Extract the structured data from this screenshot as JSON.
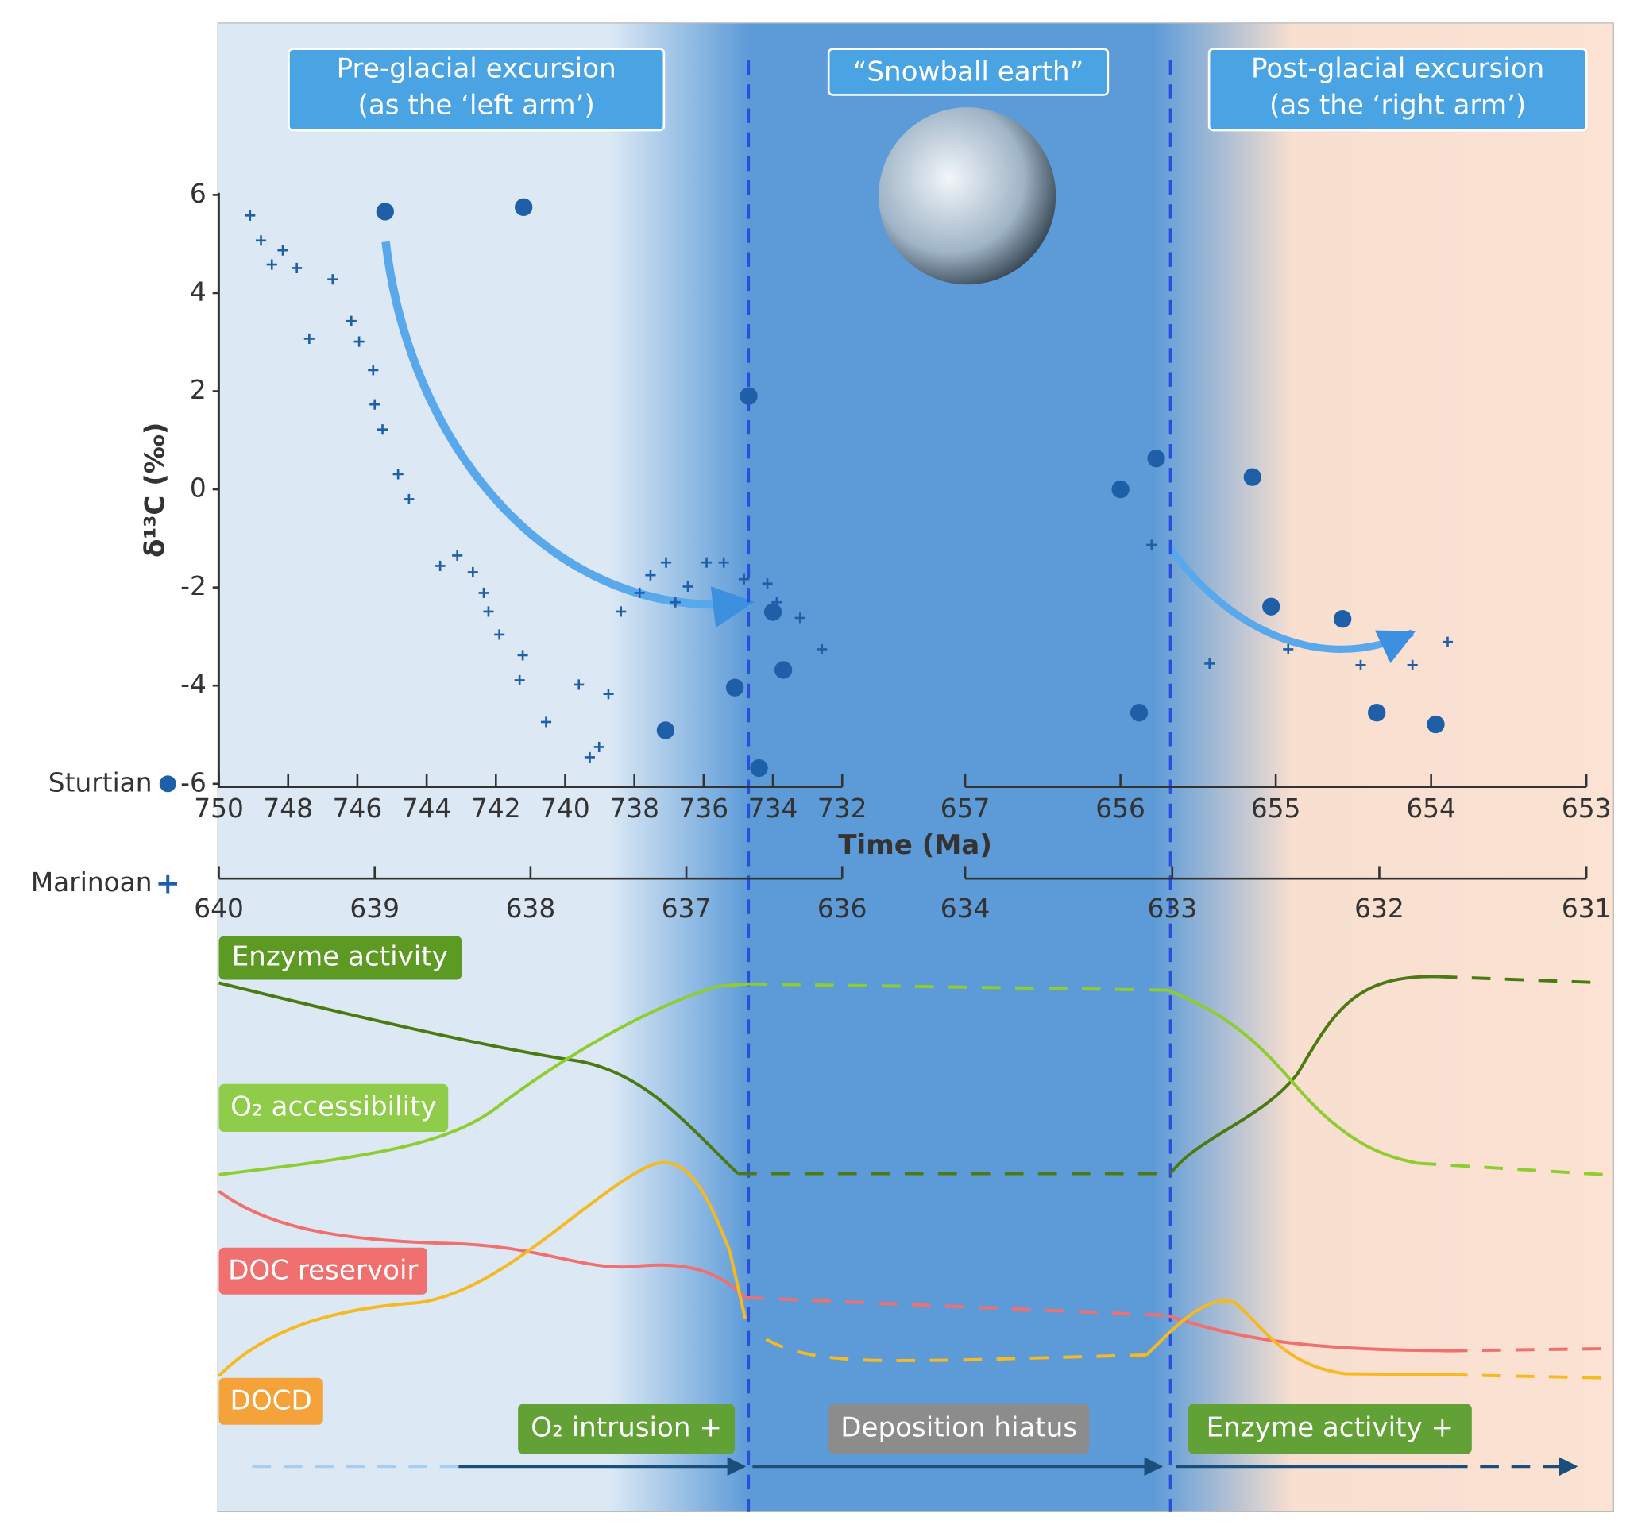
{
  "chart_data": {
    "type": "scatter",
    "xlabel": "Time (Ma)",
    "ylabel": "δ¹³C (‰)",
    "ylim": [
      -6,
      6
    ],
    "yticks": [
      -6,
      -4,
      -2,
      0,
      2,
      4,
      6
    ],
    "series": [
      {
        "name": "Sturtian",
        "color": "#1f5fa8",
        "marker": "circle",
        "x_segments": [
          {
            "xlim": [
              750,
              732
            ],
            "xticks": [
              750,
              748,
              746,
              744,
              742,
              740,
              738,
              736,
              734,
              732
            ]
          },
          {
            "xlim": [
              657,
              653
            ],
            "xticks": [
              657,
              656,
              655,
              654,
              653
            ]
          }
        ],
        "x": [
          745.2,
          741.2,
          734.7,
          734.0,
          733.7,
          735.1,
          737.1,
          734.4,
          656.0,
          655.77,
          655.15,
          655.03,
          654.57,
          655.88,
          654.35,
          653.97
        ],
        "values": [
          5.66,
          5.75,
          1.9,
          -2.5,
          -3.68,
          -4.04,
          -4.91,
          -5.68,
          0,
          0.63,
          0.25,
          -2.39,
          -2.64,
          -4.55,
          -4.55,
          -4.79
        ]
      },
      {
        "name": "Marinoan",
        "color": "#1f5fa8",
        "marker": "plus",
        "x_segments": [
          {
            "xlim": [
              640,
              636
            ],
            "xticks": [
              640,
              639,
              638,
              637,
              636
            ]
          },
          {
            "xlim": [
              634,
              631
            ],
            "xticks": [
              634,
              633,
              632,
              631
            ]
          }
        ],
        "x": [
          639.8,
          639.73,
          639.66,
          639.59,
          639.5,
          639.42,
          639.27,
          639.15,
          639.1,
          639.01,
          639.0,
          638.95,
          638.85,
          638.78,
          638.58,
          638.47,
          638.37,
          638.3,
          638.27,
          638.2,
          638.05,
          638.07,
          637.9,
          637.69,
          637.62,
          637.56,
          637.5,
          637.42,
          637.3,
          637.23,
          637.13,
          637.07,
          636.99,
          636.87,
          636.76,
          636.63,
          636.48,
          636.42,
          636.27,
          636.13,
          633.1,
          632.82,
          632.44,
          632.09,
          631.84,
          631.67
        ],
        "values": [
          5.58,
          5.07,
          4.58,
          4.87,
          4.51,
          3.07,
          4.28,
          3.43,
          3.01,
          2.43,
          1.73,
          1.22,
          0.31,
          -0.2,
          -1.56,
          -1.35,
          -1.69,
          -2.11,
          -2.49,
          -2.96,
          -3.38,
          -3.89,
          -4.74,
          -3.98,
          -5.46,
          -5.25,
          -4.17,
          -2.49,
          -2.11,
          -1.75,
          -1.49,
          -2.3,
          -1.98,
          -1.49,
          -1.49,
          -1.83,
          -1.92,
          -2.3,
          -2.62,
          -3.26,
          -1.13,
          -3.55,
          -3.26,
          -3.58,
          -3.58,
          -3.11
        ]
      }
    ],
    "phases": [
      [
        "Pre-glacial excursion",
        "(as the ‘left arm’)"
      ],
      [
        "“Snowball earth”"
      ],
      [
        "Post-glacial excursion",
        "(as the ‘right arm’)"
      ]
    ],
    "curves": [
      "Enzyme activity",
      "O₂ accessibility",
      "DOC reservoir",
      "DOCD"
    ],
    "processes": [
      "O₂ intrusion +",
      "Deposition hiatus",
      "Enzyme activity +"
    ]
  }
}
